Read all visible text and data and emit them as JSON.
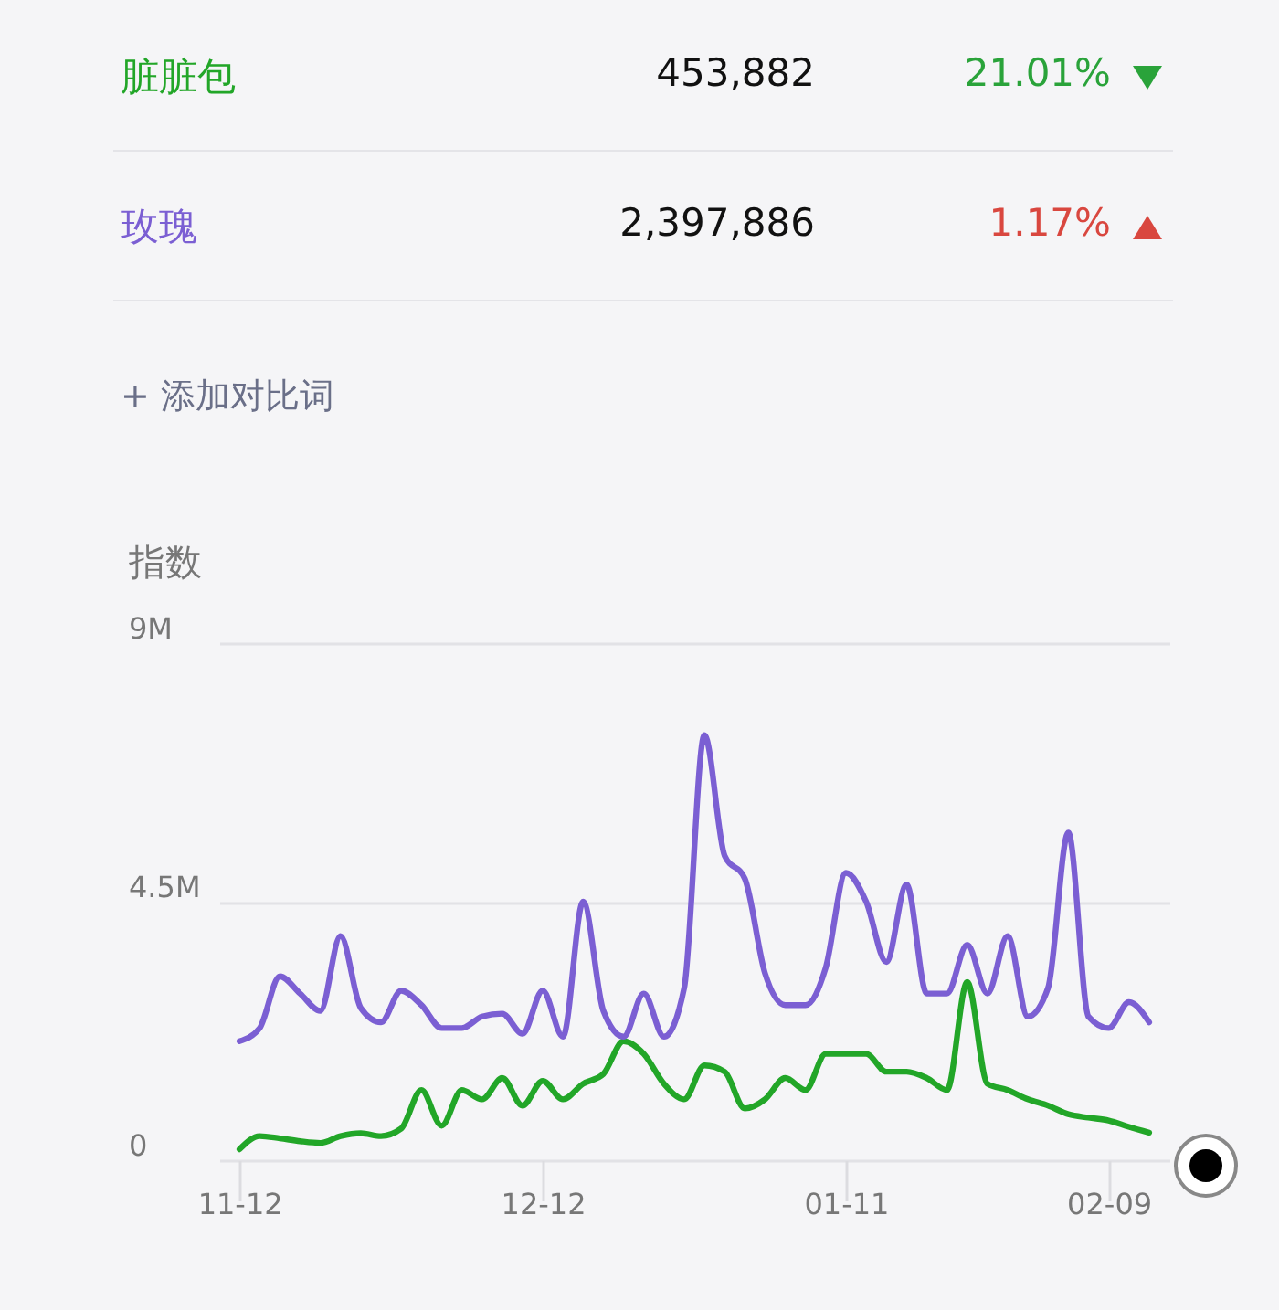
{
  "chart_data": {
    "type": "line",
    "ylabel": "指数",
    "categories": [
      "11-12",
      null,
      null,
      null,
      null,
      null,
      null,
      null,
      null,
      null,
      null,
      null,
      null,
      null,
      null,
      "12-12",
      null,
      null,
      null,
      null,
      null,
      null,
      null,
      null,
      null,
      null,
      null,
      null,
      null,
      null,
      "01-11",
      null,
      null,
      null,
      null,
      null,
      null,
      null,
      null,
      null,
      null,
      null,
      null,
      "02-09",
      null,
      null
    ],
    "series": [
      {
        "name": "脏脏包",
        "color": "#22a628",
        "values": [
          190000,
          420000,
          380000,
          330000,
          300000,
          420000,
          470000,
          420000,
          550000,
          1220000,
          600000,
          1220000,
          1060000,
          1430000,
          950000,
          1380000,
          1060000,
          1330000,
          1500000,
          2070000,
          1850000,
          1330000,
          1060000,
          1650000,
          1540000,
          900000,
          1060000,
          1430000,
          1220000,
          1850000,
          1850000,
          1850000,
          1540000,
          1540000,
          1430000,
          1220000,
          3100000,
          1330000,
          1220000,
          1060000,
          950000,
          800000,
          740000,
          690000,
          580000,
          480000
        ]
      },
      {
        "name": "玫瑰",
        "color": "#7b5fd3",
        "values": [
          2070000,
          2300000,
          3200000,
          2900000,
          2600000,
          3900000,
          2650000,
          2400000,
          2950000,
          2700000,
          2300000,
          2300000,
          2500000,
          2550000,
          2200000,
          2950000,
          2150000,
          4500000,
          2600000,
          2150000,
          2900000,
          2150000,
          3000000,
          7400000,
          5300000,
          4900000,
          3250000,
          2700000,
          2700000,
          3350000,
          5000000,
          4500000,
          3450000,
          4800000,
          2900000,
          2900000,
          3750000,
          2900000,
          3900000,
          2500000,
          3000000,
          5700000,
          2500000,
          2300000,
          2750000,
          2400000
        ]
      }
    ],
    "ylim": [
      0,
      9000000
    ],
    "yticks": [
      {
        "value": 0,
        "label": "0"
      },
      {
        "value": 4500000,
        "label": "4.5M"
      },
      {
        "value": 9000000,
        "label": "9M"
      }
    ],
    "grid": "y",
    "legend": "top",
    "marker": "none",
    "line_style": "solid",
    "annotations": [
      "453,882",
      "21.01%",
      "2,397,886",
      "1.17%",
      "+ 添加对比词"
    ]
  }
}
